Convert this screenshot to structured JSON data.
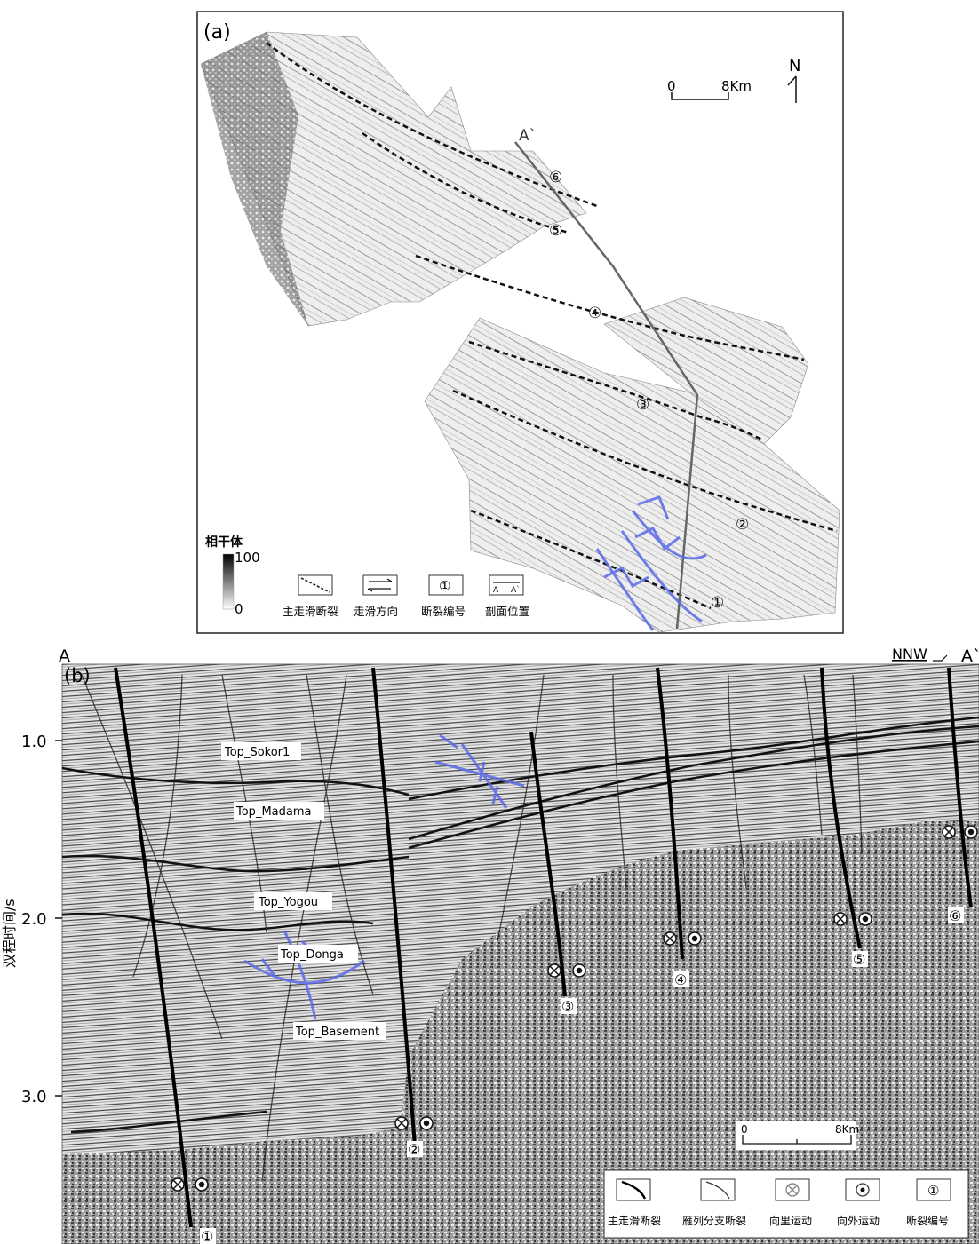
{
  "panel_a": {
    "label": "(a)",
    "north": "N",
    "scale": {
      "start": "0",
      "end": "8Km"
    },
    "section_end": "A`",
    "fault_numbers": [
      "①",
      "②",
      "③",
      "④",
      "⑤",
      "⑥"
    ],
    "colorbar": {
      "title": "相干体",
      "max": "100",
      "min": "0"
    },
    "legend": {
      "main_fault": "主走滑断裂",
      "slip_direction": "走滑方向",
      "fault_number": "断裂编号",
      "fault_number_symbol": "①",
      "section_location": "剖面位置",
      "section_symbol_a": "A",
      "section_symbol_b": "A`"
    },
    "colors": {
      "fault_trace": "#111111",
      "section_line": "#666666",
      "annotation": "#5a6ae8"
    }
  },
  "panel_b": {
    "label": "(b)",
    "start": "A",
    "end": "A`",
    "direction": "NNW",
    "y_axis_label": "双程时间/s",
    "y_ticks": [
      "1.0",
      "2.0",
      "3.0"
    ],
    "horizons": [
      "Top_Sokor1",
      "Top_Madama",
      "Top_Yogou",
      "Top_Donga",
      "Top_Basement"
    ],
    "fault_numbers": [
      "①",
      "②",
      "③",
      "④",
      "⑤",
      "⑥"
    ],
    "scale": {
      "start": "0",
      "end": "8Km"
    },
    "legend": {
      "main_fault": "主走滑断裂",
      "branch_fault": "雁列分支断裂",
      "inward": "向里运动",
      "outward": "向外运动",
      "fault_number": "断裂编号",
      "fault_number_symbol": "①"
    }
  }
}
